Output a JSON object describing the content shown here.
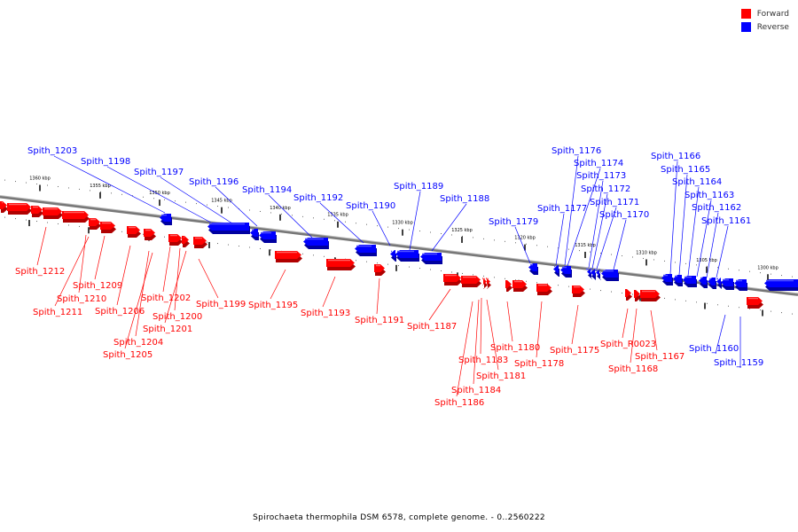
{
  "legend": {
    "forward_label": "Forward",
    "reverse_label": "Reverse",
    "forward_color": "#ff0000",
    "reverse_color": "#0000ff"
  },
  "caption": "Spirochaeta thermophila DSM 6578, complete genome. - 0..2560222",
  "scale_labels": [
    "1360 kbp",
    "1355 kbp",
    "1350 kbp",
    "1345 kbp",
    "1340 kbp",
    "1335 kbp",
    "1330 kbp",
    "1325 kbp",
    "1320 kbp",
    "1315 kbp",
    "1310 kbp",
    "1305 kbp",
    "1300 kbp"
  ],
  "reverse_genes": [
    "Spith_1203",
    "Spith_1198",
    "Spith_1197",
    "Spith_1196",
    "Spith_1194",
    "Spith_1192",
    "Spith_1190",
    "Spith_1189",
    "Spith_1188",
    "Spith_1179",
    "Spith_1177",
    "Spith_1176",
    "Spith_1174",
    "Spith_1173",
    "Spith_1172",
    "Spith_1171",
    "Spith_1170",
    "Spith_1166",
    "Spith_1165",
    "Spith_1164",
    "Spith_1163",
    "Spith_1162",
    "Spith_1161",
    "Spith_1160",
    "Spith_1159"
  ],
  "forward_genes": [
    "Spith_1212",
    "Spith_1210",
    "Spith_1211",
    "Spith_1209",
    "Spith_1206",
    "Spith_1202",
    "Spith_1200",
    "Spith_1201",
    "Spith_1204",
    "Spith_1205",
    "Spith_1199",
    "Spith_1195",
    "Spith_1193",
    "Spith_1191",
    "Spith_1187",
    "Spith_1183",
    "Spith_1184",
    "Spith_1186",
    "Spith_1181",
    "Spith_1180",
    "Spith_1178",
    "Spith_1175",
    "Spith_R0023",
    "Spith_1168",
    "Spith_1167"
  ]
}
